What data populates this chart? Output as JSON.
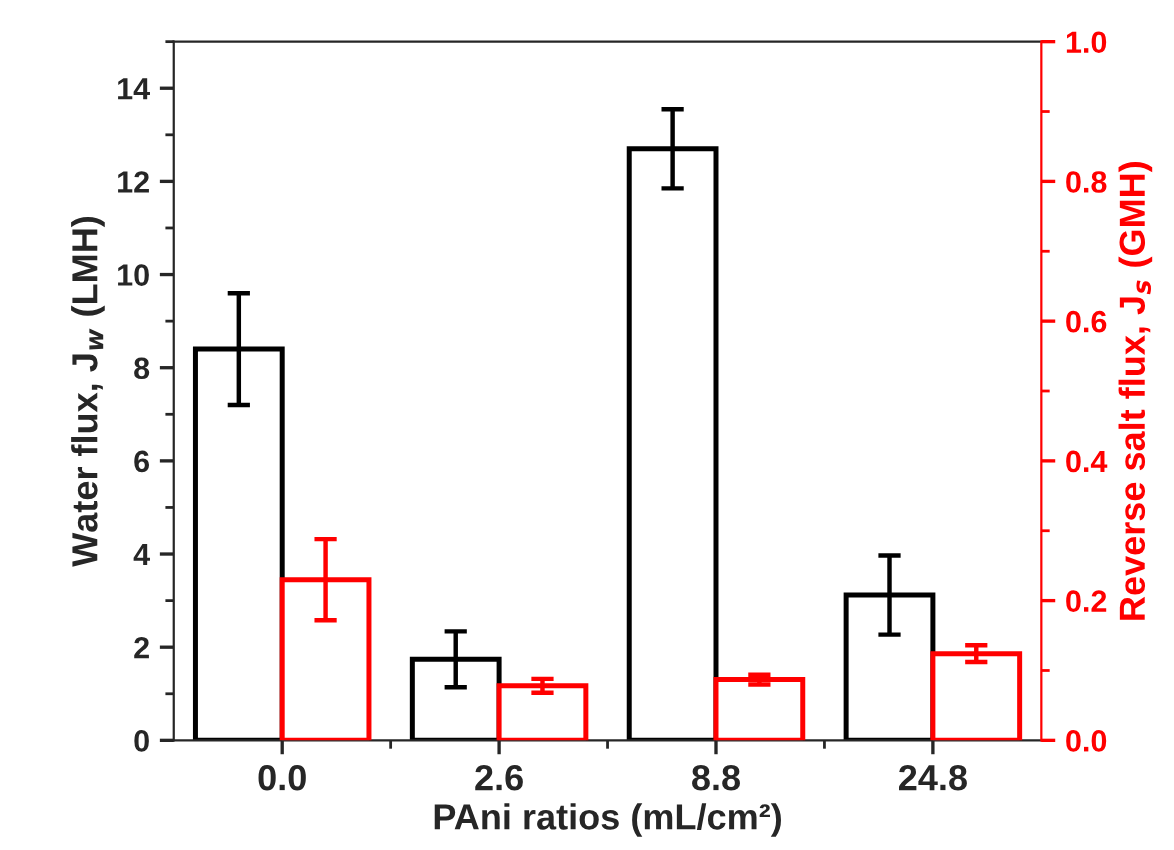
{
  "chart_data": {
    "type": "bar",
    "xlabel": "PAni ratios (mL/cm²)",
    "ylabel": "Water flux, J$_{w}$ (LMH)",
    "y2label": "Reverse salt flux, J$_{s}$ (GMH)",
    "categories": [
      "0.0",
      "2.6",
      "8.8",
      "24.8"
    ],
    "series": [
      {
        "color": "#000000",
        "values": [
          8.4,
          1.74,
          12.7,
          3.12
        ],
        "errors": [
          1.2,
          0.6,
          0.85,
          0.85
        ]
      },
      {
        "color": "#ff0000",
        "axis": "y2",
        "values": [
          0.23,
          0.078,
          0.087,
          0.124
        ],
        "errors": [
          0.058,
          0.01,
          0.007,
          0.012
        ]
      }
    ],
    "ylim": [
      0,
      15
    ],
    "yticks": [
      0,
      2,
      4,
      6,
      8,
      10,
      12,
      14
    ],
    "y2lim": [
      0,
      1.0
    ],
    "y2ticks": [
      {
        "value": 0,
        "label": "0.0"
      },
      {
        "value": 0.2,
        "label": "0.2"
      },
      {
        "value": 0.4,
        "label": "0.4"
      },
      {
        "value": 0.6,
        "label": "0.6"
      },
      {
        "value": 0.8,
        "label": "0.8"
      },
      {
        "value": 1.0,
        "label": "1.0"
      }
    ],
    "grid": false,
    "legend": false
  }
}
